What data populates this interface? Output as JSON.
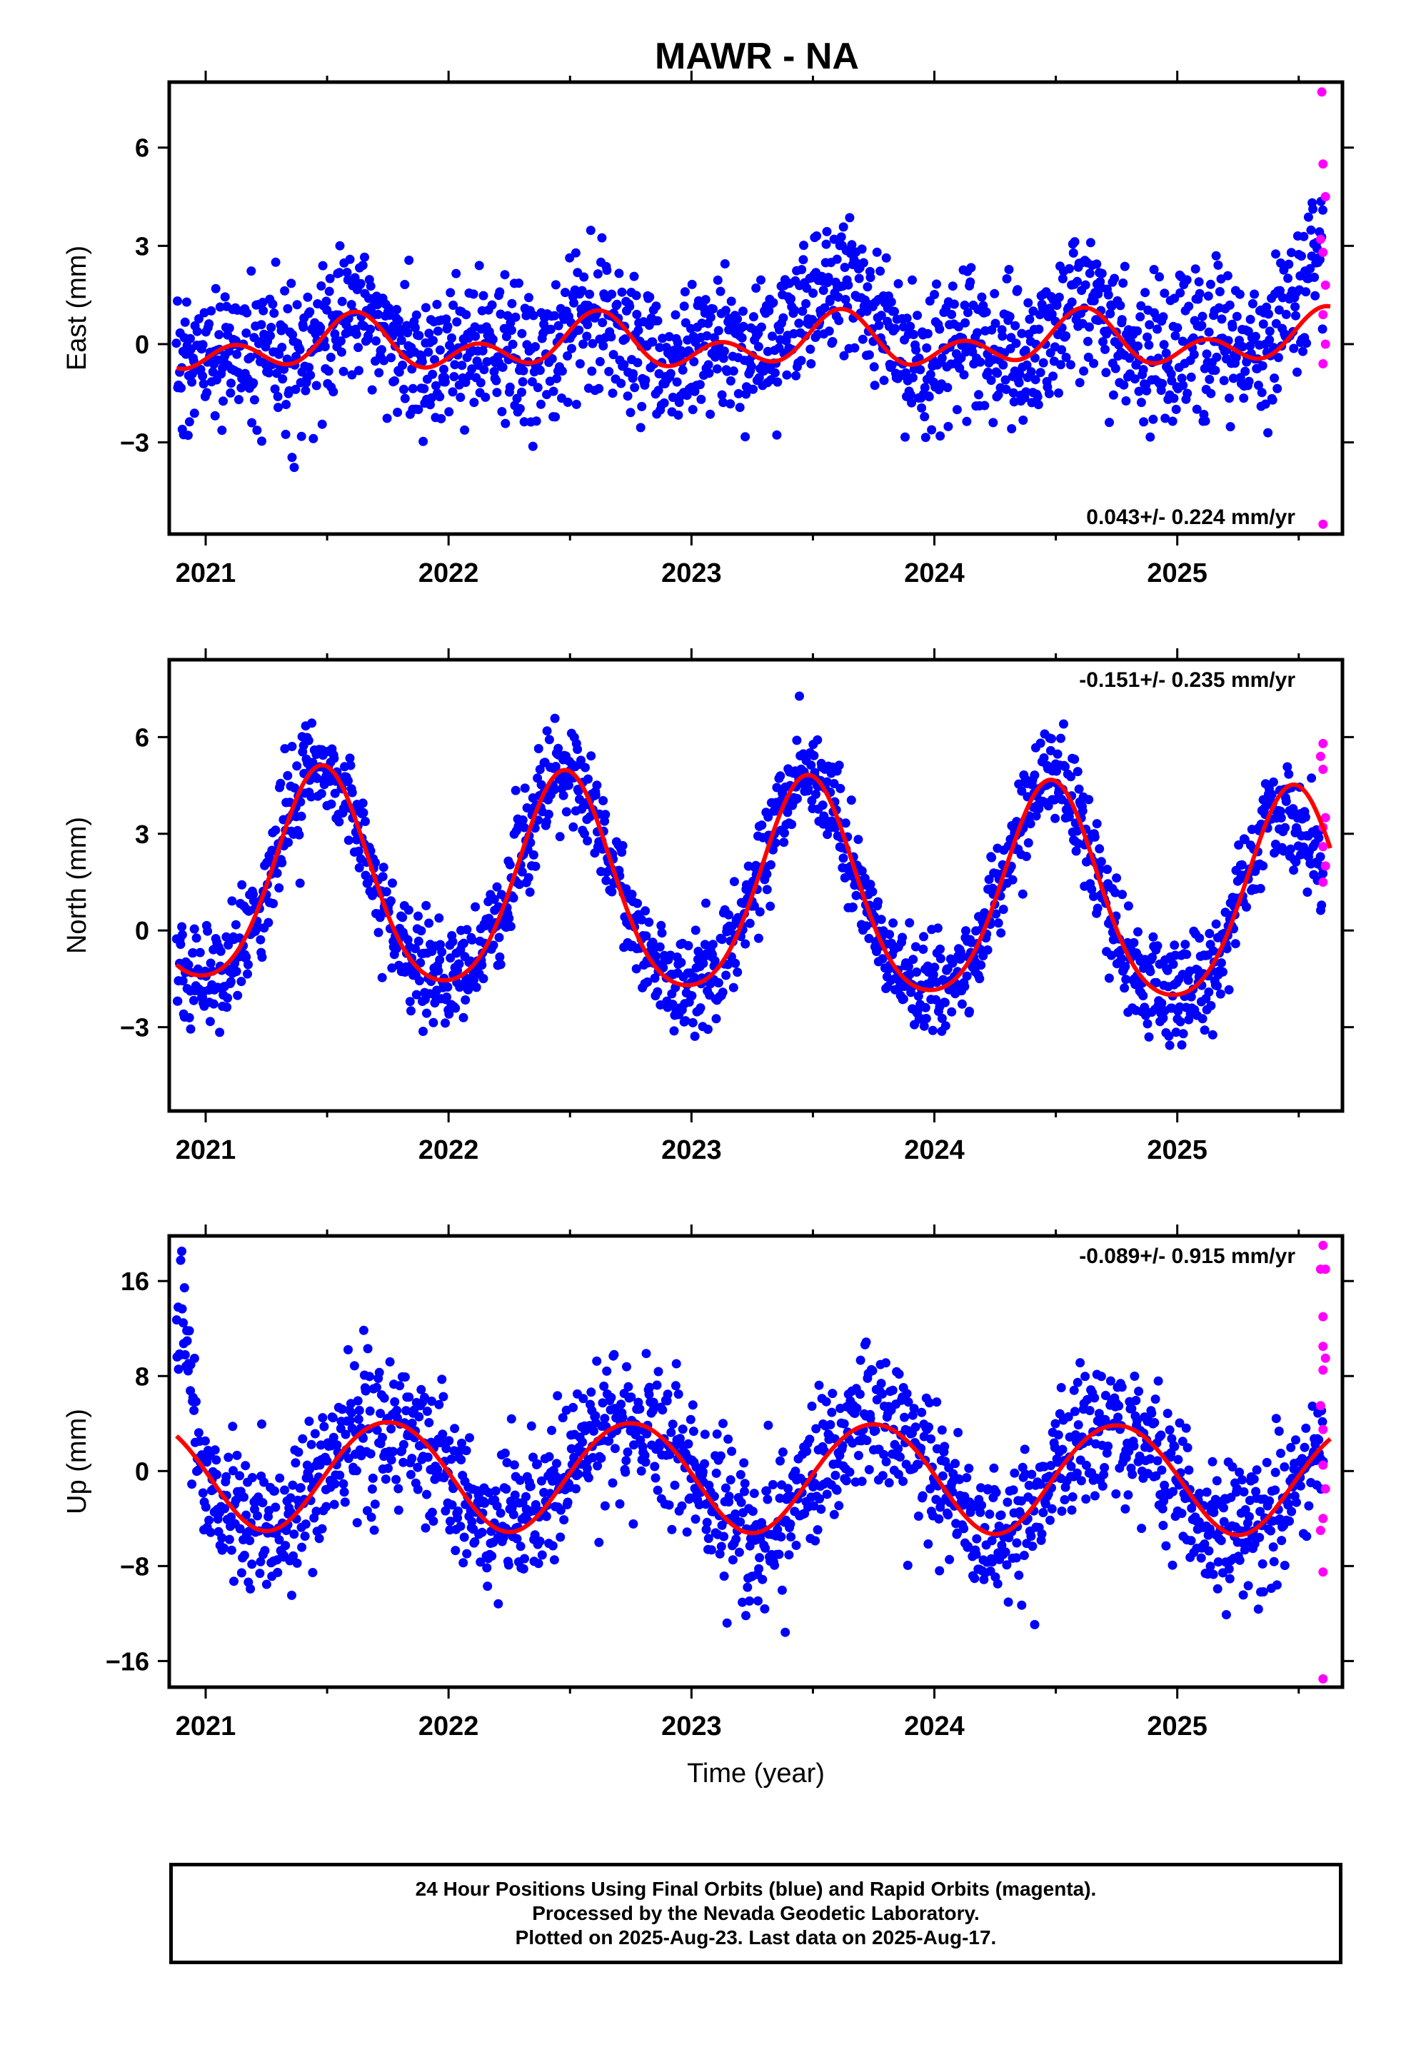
{
  "title": "MAWR - NA",
  "colors": {
    "final": "#0000ff",
    "rapid": "#ff00ff",
    "model": "#ff0000",
    "frame": "#000000"
  },
  "chart_data": [
    {
      "type": "scatter",
      "component": "east",
      "ylabel": "East (mm)",
      "xlabel": "",
      "xlim": [
        2020.85,
        2025.68
      ],
      "ylim": [
        -5.8,
        8.0
      ],
      "yticks": [
        -3,
        0,
        3,
        6
      ],
      "ytick_labels": [
        "−3",
        "0",
        "3",
        "6"
      ],
      "xticks": [
        2021,
        2022,
        2023,
        2024,
        2025
      ],
      "xtick_labels": [
        "2021",
        "2022",
        "2023",
        "2024",
        "2025"
      ],
      "rate_label": "0.043+/- 0.224 mm/yr",
      "rate_position": "bottom-right",
      "grid": false,
      "model": {
        "offset": 0.0,
        "rate": 0.043,
        "ref_epoch": 2023.0,
        "annual": {
          "amp": 0.5,
          "phase_peak": 0.6
        },
        "semiannual": {
          "amp": 0.55,
          "phase_peak": 0.62
        },
        "start": 2020.88,
        "end": 2025.63
      },
      "scatter": {
        "n": 1600,
        "noise": 1.1,
        "start": 2020.88,
        "end": 2025.6,
        "bumps": [
          [
            2023.55,
            0.22,
            1.3
          ],
          [
            2025.55,
            0.12,
            1.3
          ]
        ]
      },
      "rapid_points": [
        [
          2025.595,
          7.7
        ],
        [
          2025.6,
          5.5
        ],
        [
          2025.61,
          4.5
        ],
        [
          2025.59,
          3.2
        ],
        [
          2025.6,
          2.8
        ],
        [
          2025.61,
          1.8
        ],
        [
          2025.6,
          0.9
        ],
        [
          2025.61,
          0.0
        ],
        [
          2025.6,
          -0.6
        ],
        [
          2025.6,
          -5.5
        ]
      ]
    },
    {
      "type": "scatter",
      "component": "north",
      "ylabel": "North (mm)",
      "xlabel": "",
      "xlim": [
        2020.85,
        2025.68
      ],
      "ylim": [
        -5.6,
        8.4
      ],
      "yticks": [
        -3,
        0,
        3,
        6
      ],
      "ytick_labels": [
        "−3",
        "0",
        "3",
        "6"
      ],
      "xticks": [
        2021,
        2022,
        2023,
        2024,
        2025
      ],
      "xtick_labels": [
        "2021",
        "2022",
        "2023",
        "2024",
        "2025"
      ],
      "rate_label": "-0.151+/- 0.235 mm/yr",
      "rate_position": "top-right",
      "grid": false,
      "model": {
        "offset": 1.15,
        "rate": -0.151,
        "ref_epoch": 2023.0,
        "annual": {
          "amp": 3.3,
          "phase_peak": 0.48
        },
        "semiannual": {
          "amp": 0.45,
          "phase_peak": 0.48
        },
        "start": 2020.88,
        "end": 2025.63
      },
      "scatter": {
        "n": 1600,
        "noise": 0.8,
        "start": 2020.88,
        "end": 2025.6,
        "bumps": [
          [
            2025.55,
            0.12,
            -1.6
          ]
        ]
      },
      "rapid_points": [
        [
          2025.6,
          5.8
        ],
        [
          2025.59,
          5.4
        ],
        [
          2025.6,
          5.0
        ],
        [
          2025.61,
          3.5
        ],
        [
          2025.6,
          3.2
        ],
        [
          2025.6,
          2.6
        ],
        [
          2025.61,
          2.0
        ],
        [
          2025.6,
          1.5
        ]
      ]
    },
    {
      "type": "scatter",
      "component": "up",
      "ylabel": "Up (mm)",
      "xlabel": "Time (year)",
      "xlim": [
        2020.85,
        2025.68
      ],
      "ylim": [
        -18.2,
        19.8
      ],
      "yticks": [
        -16,
        -8,
        0,
        8,
        16
      ],
      "ytick_labels": [
        "−16",
        "−8",
        "0",
        "8",
        "16"
      ],
      "xticks": [
        2021,
        2022,
        2023,
        2024,
        2025
      ],
      "xtick_labels": [
        "2021",
        "2022",
        "2023",
        "2024",
        "2025"
      ],
      "rate_label": "-0.089+/- 0.915 mm/yr",
      "rate_position": "top-right",
      "grid": false,
      "model": {
        "offset": -0.4,
        "rate": -0.089,
        "ref_epoch": 2023.0,
        "annual": {
          "amp": 4.6,
          "phase_peak": 0.75
        },
        "semiannual": {
          "amp": 0.2,
          "phase_peak": 0.0
        },
        "start": 2020.88,
        "end": 2025.63
      },
      "scatter": {
        "n": 1600,
        "noise": 3.0,
        "start": 2020.88,
        "end": 2025.6,
        "bumps": [
          [
            2020.9,
            0.06,
            9.0
          ]
        ]
      },
      "rapid_points": [
        [
          2025.6,
          19.0
        ],
        [
          2025.59,
          17.0
        ],
        [
          2025.61,
          17.0
        ],
        [
          2025.6,
          13.0
        ],
        [
          2025.6,
          10.5
        ],
        [
          2025.61,
          9.5
        ],
        [
          2025.6,
          8.5
        ],
        [
          2025.59,
          5.5
        ],
        [
          2025.6,
          3.5
        ],
        [
          2025.6,
          0.5
        ],
        [
          2025.61,
          -1.5
        ],
        [
          2025.6,
          -4.0
        ],
        [
          2025.59,
          -5.0
        ],
        [
          2025.6,
          -8.5
        ],
        [
          2025.6,
          -17.5
        ]
      ]
    }
  ],
  "caption": {
    "line1": "24 Hour Positions Using Final Orbits (blue) and Rapid Orbits (magenta).",
    "line2": "Processed by the Nevada Geodetic Laboratory.",
    "line3": "Plotted on 2025-Aug-23. Last data on 2025-Aug-17."
  }
}
